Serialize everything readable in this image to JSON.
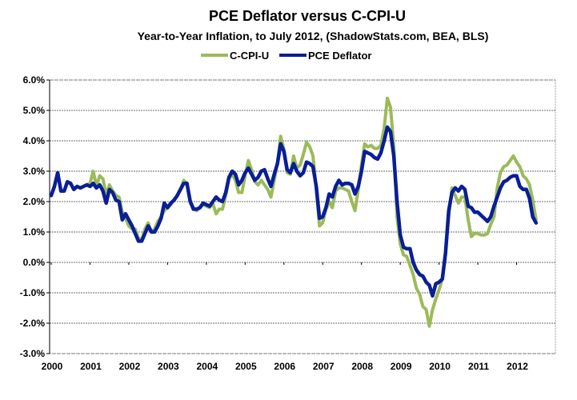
{
  "chart_data": {
    "type": "line",
    "title": "PCE Deflator versus C-CPI-U",
    "subtitle": "Year-to-Year Inflation, to July 2012, (ShadowStats.com, BEA, BLS)",
    "xlabel": "",
    "ylabel": "",
    "x_start": "2000-01",
    "x_frequency": "monthly",
    "x_tick_labels": [
      "2000",
      "2001",
      "2002",
      "2003",
      "2004",
      "2005",
      "2006",
      "2007",
      "2008",
      "2009",
      "2010",
      "2011",
      "2012"
    ],
    "y_tick_labels": [
      "6.0%",
      "5.0%",
      "4.0%",
      "3.0%",
      "2.0%",
      "1.0%",
      "0.0%",
      "-1.0%",
      "-2.0%",
      "-3.0%"
    ],
    "ylim": [
      -3,
      6
    ],
    "xlim": [
      "2000-01",
      "2012-12"
    ],
    "grid": "horizontal",
    "legend_position": "top-center",
    "series": [
      {
        "name": "C-CPI-U",
        "color": "#9bbb59",
        "values": [
          2.2,
          2.5,
          2.95,
          2.35,
          2.35,
          2.65,
          2.6,
          2.4,
          2.5,
          2.45,
          2.5,
          2.55,
          2.6,
          3.0,
          2.5,
          2.85,
          2.75,
          2.2,
          2.55,
          2.35,
          2.2,
          2.15,
          1.65,
          1.45,
          1.2,
          1.1,
          1.1,
          0.8,
          0.75,
          1.1,
          1.3,
          1.0,
          1.1,
          1.35,
          1.5,
          1.7,
          1.8,
          1.9,
          2.05,
          2.2,
          2.4,
          2.7,
          2.6,
          2.05,
          1.8,
          1.7,
          1.8,
          1.9,
          1.85,
          1.8,
          1.95,
          1.6,
          1.75,
          1.75,
          2.2,
          2.75,
          2.9,
          2.7,
          2.3,
          2.3,
          2.85,
          3.35,
          3.05,
          2.65,
          2.55,
          2.7,
          2.55,
          2.4,
          2.15,
          2.7,
          3.3,
          4.15,
          3.7,
          2.95,
          2.9,
          3.5,
          3.1,
          3.2,
          3.55,
          3.95,
          3.8,
          3.5,
          2.4,
          1.2,
          1.3,
          1.75,
          2.0,
          1.8,
          2.35,
          2.45,
          2.45,
          2.4,
          2.35,
          2.0,
          1.7,
          2.4,
          3.2,
          3.9,
          3.8,
          3.85,
          3.75,
          3.75,
          3.85,
          4.4,
          5.4,
          5.1,
          3.8,
          1.5,
          0.6,
          0.25,
          0.2,
          -0.1,
          -0.4,
          -0.85,
          -1.05,
          -1.45,
          -1.55,
          -2.1,
          -1.55,
          -1.2,
          -0.9,
          -0.55,
          0.35,
          1.5,
          2.45,
          2.2,
          1.95,
          2.15,
          2.15,
          1.4,
          0.85,
          0.95,
          0.95,
          0.9,
          0.9,
          0.95,
          1.25,
          1.5,
          2.45,
          2.95,
          3.15,
          3.2,
          3.35,
          3.5,
          3.3,
          3.15,
          2.85,
          2.75,
          2.55,
          2.05,
          1.4
        ]
      },
      {
        "name": "PCE Deflator",
        "color": "#0a1e96",
        "values": [
          2.2,
          2.5,
          2.95,
          2.35,
          2.35,
          2.65,
          2.6,
          2.4,
          2.5,
          2.45,
          2.5,
          2.55,
          2.5,
          2.6,
          2.45,
          2.55,
          2.35,
          1.95,
          2.4,
          2.3,
          2.05,
          2.0,
          1.4,
          1.6,
          1.4,
          1.2,
          0.95,
          0.7,
          0.7,
          0.95,
          1.2,
          1.0,
          1.0,
          1.2,
          1.45,
          1.95,
          1.8,
          1.95,
          2.05,
          2.2,
          2.4,
          2.6,
          2.6,
          2.0,
          1.75,
          1.75,
          1.8,
          1.95,
          1.9,
          1.85,
          2.0,
          2.15,
          2.05,
          2.0,
          2.3,
          2.8,
          3.0,
          2.9,
          2.55,
          2.7,
          2.95,
          3.1,
          2.9,
          2.7,
          2.8,
          3.0,
          3.05,
          2.75,
          2.5,
          2.9,
          3.25,
          3.9,
          3.65,
          3.05,
          2.95,
          3.25,
          3.0,
          2.85,
          2.95,
          3.3,
          3.25,
          3.15,
          2.5,
          1.45,
          1.5,
          1.8,
          2.25,
          2.15,
          2.5,
          2.7,
          2.55,
          2.6,
          2.6,
          2.55,
          2.25,
          2.5,
          3.0,
          3.65,
          3.6,
          3.55,
          3.45,
          3.4,
          3.6,
          4.0,
          4.45,
          4.3,
          3.5,
          2.0,
          0.9,
          0.5,
          0.45,
          0.45,
          0.0,
          -0.25,
          -0.4,
          -0.45,
          -0.65,
          -0.75,
          -1.1,
          -0.7,
          -0.65,
          -0.55,
          0.3,
          1.7,
          2.3,
          2.45,
          2.35,
          2.5,
          2.4,
          1.85,
          1.8,
          1.65,
          1.65,
          1.55,
          1.45,
          1.35,
          1.5,
          1.85,
          2.15,
          2.45,
          2.65,
          2.7,
          2.8,
          2.85,
          2.85,
          2.5,
          2.4,
          2.4,
          2.1,
          1.5,
          1.3
        ]
      }
    ]
  }
}
